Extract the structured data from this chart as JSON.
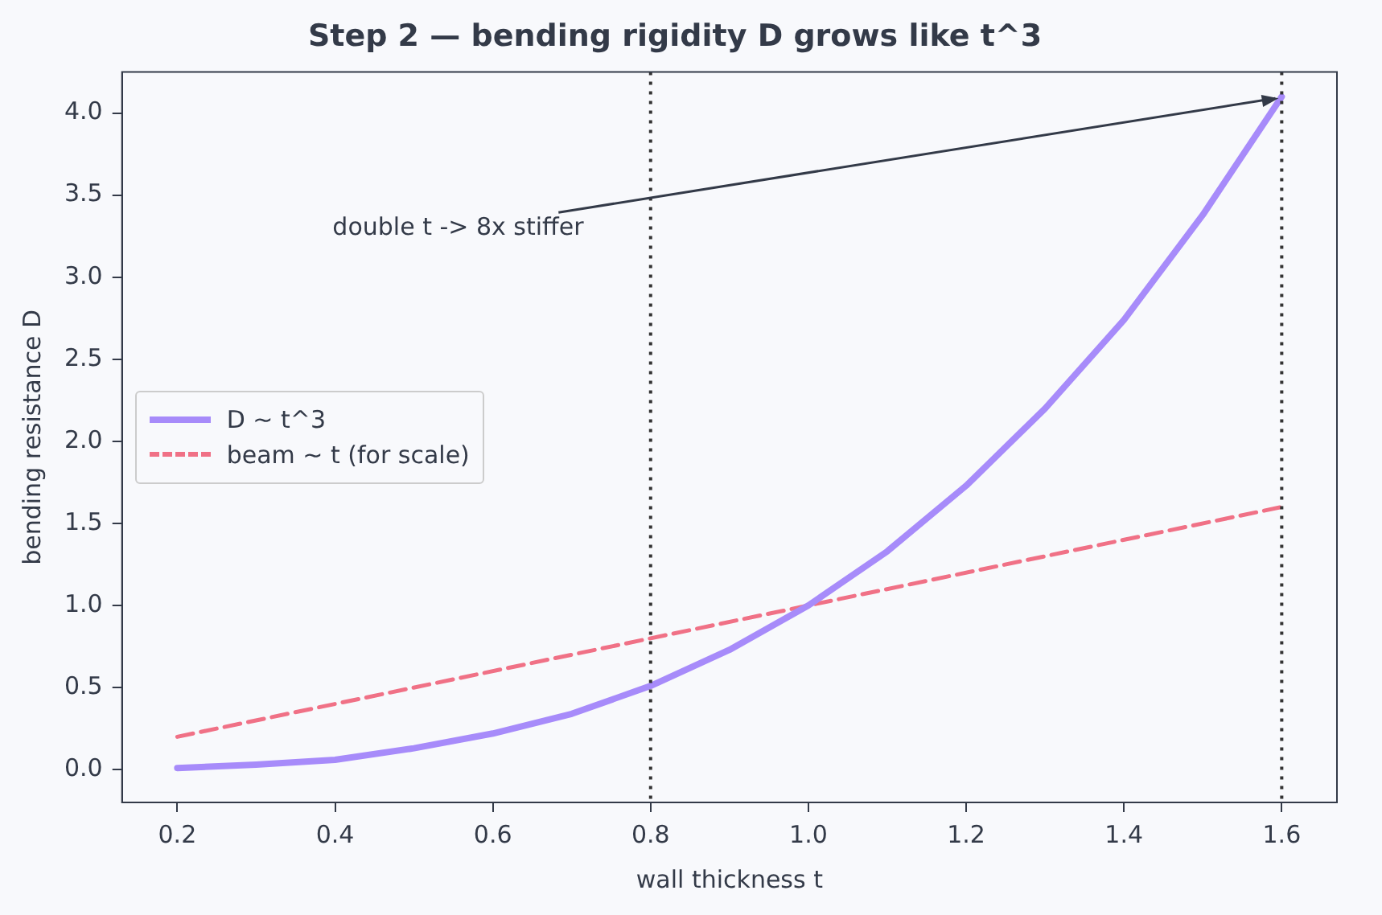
{
  "chart_data": {
    "type": "line",
    "title": "Step 2 — bending rigidity D grows like t^3",
    "xlabel": "wall thickness t",
    "ylabel": "bending resistance D",
    "series": [
      {
        "name": "D ~ t^3",
        "color": "#a78bfa",
        "x": [
          0.2,
          0.3,
          0.4,
          0.5,
          0.6,
          0.7,
          0.8,
          0.9,
          1.0,
          1.1,
          1.2,
          1.3,
          1.4,
          1.5,
          1.6
        ],
        "values": [
          0.01,
          0.03,
          0.06,
          0.13,
          0.22,
          0.34,
          0.51,
          0.73,
          1.0,
          1.33,
          1.73,
          2.2,
          2.74,
          3.38,
          4.1
        ],
        "line_style": "solid"
      },
      {
        "name": "beam ~ t (for scale)",
        "color": "#f07186",
        "x": [
          0.2,
          1.6
        ],
        "values": [
          0.2,
          1.6
        ],
        "line_style": "dashed"
      }
    ],
    "xlim": [
      0.13,
      1.67
    ],
    "ylim": [
      -0.2,
      4.25
    ],
    "xticks": [
      0.2,
      0.4,
      0.6,
      0.8,
      {
        "value": 1,
        "label": "1.0"
      },
      1.2,
      1.4,
      1.6
    ],
    "yticks": [
      {
        "value": 0,
        "label": "0.0"
      },
      {
        "value": 0.5,
        "label": "0.5"
      },
      {
        "value": 1,
        "label": "1.0"
      },
      {
        "value": 1.5,
        "label": "1.5"
      },
      {
        "value": 2,
        "label": "2.0"
      },
      {
        "value": 2.5,
        "label": "2.5"
      },
      {
        "value": 3,
        "label": "3.0"
      },
      {
        "value": 3.5,
        "label": "3.5"
      },
      {
        "value": 4,
        "label": "4.0"
      }
    ],
    "ref_lines": [
      {
        "axis": "x",
        "value": 0.8,
        "color": "#333333",
        "line_style": "dotted"
      },
      {
        "axis": "x",
        "value": 1.6,
        "color": "#333333",
        "line_style": "dotted"
      }
    ],
    "annotations": [
      {
        "text": "double t -> 8x stiffer",
        "x": 1.6,
        "y": 4.1
      }
    ],
    "legend": "center left"
  }
}
